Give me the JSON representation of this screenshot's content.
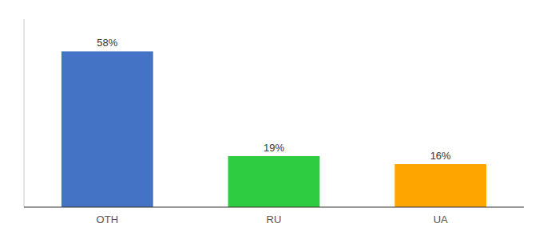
{
  "chart_data": {
    "type": "bar",
    "categories": [
      "OTH",
      "RU",
      "UA"
    ],
    "values": [
      58,
      19,
      16
    ],
    "value_labels": [
      "58%",
      "19%",
      "16%"
    ],
    "colors": [
      "#4472C4",
      "#2ECC40",
      "#FFA500"
    ],
    "ylim": [
      0,
      70
    ],
    "data_labels": true,
    "tick_labels": "x"
  }
}
